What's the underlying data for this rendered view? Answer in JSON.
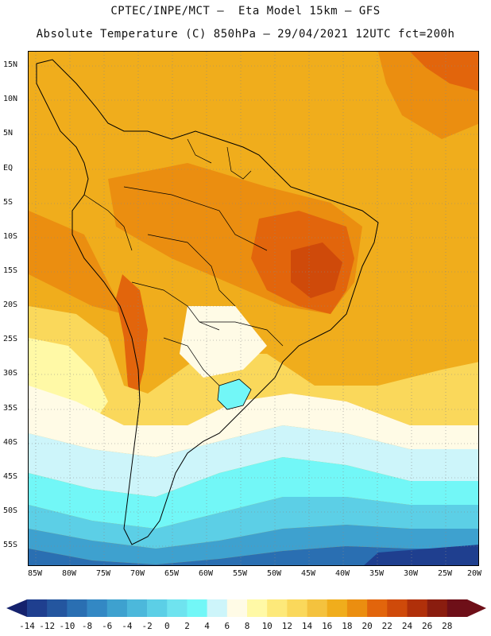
{
  "header": {
    "line1": "CPTEC/INPE/MCT –  Eta Model 15km – GFS",
    "line2": "Absolute Temperature (C) 850hPa – 29/04/2021 12UTC fct=200h"
  },
  "map": {
    "lat_labels": [
      "15N",
      "10N",
      "5N",
      "EQ",
      "5S",
      "10S",
      "15S",
      "20S",
      "25S",
      "30S",
      "35S",
      "40S",
      "45S",
      "50S",
      "55S"
    ],
    "lon_labels": [
      "85W",
      "80W",
      "75W",
      "70W",
      "65W",
      "60W",
      "55W",
      "50W",
      "45W",
      "40W",
      "35W",
      "30W",
      "25W",
      "20W"
    ],
    "region": "South America",
    "field": "850hPa temperature"
  },
  "colorbar": {
    "labels": [
      "-14",
      "-12",
      "-10",
      "-8",
      "-6",
      "-4",
      "-2",
      "0",
      "2",
      "4",
      "6",
      "8",
      "10",
      "12",
      "14",
      "16",
      "18",
      "20",
      "22",
      "24",
      "26",
      "28"
    ],
    "colors": [
      "#1f3f8f",
      "#24569f",
      "#2a6fb2",
      "#3388c4",
      "#3ea1cf",
      "#4cb8db",
      "#5ccfe6",
      "#6fe3ef",
      "#72f7f7",
      "#cdf5fa",
      "#fffbe6",
      "#fff9a6",
      "#fde97a",
      "#fad85b",
      "#f4c23e",
      "#f0ad1c",
      "#eb8e10",
      "#e2650c",
      "#cf4a0a",
      "#b0300a",
      "#8a1d0f",
      "#6e0f18"
    ],
    "low_arrow_color": "#15226d",
    "high_arrow_color": "#6e0f18"
  }
}
